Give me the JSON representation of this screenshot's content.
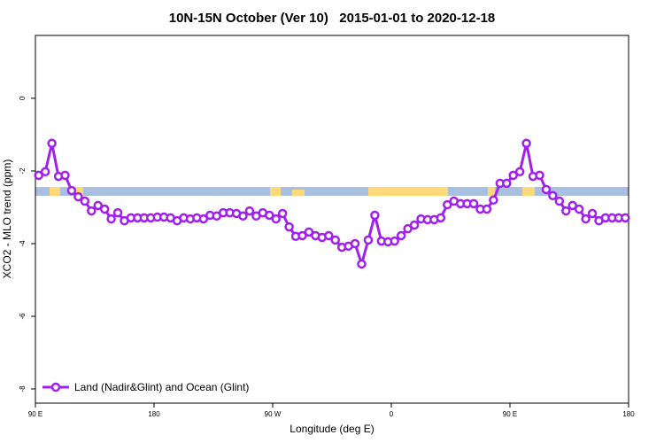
{
  "chart_data": {
    "type": "line",
    "title": "10N-15N October (Ver 10)   2015-01-01 to 2020-12-18",
    "x_label": "Longitude (deg E)",
    "y_label": "XCO2 - MLO trend (ppm)",
    "xlim": [
      90,
      540
    ],
    "ylim": [
      -8.39,
      1.73
    ],
    "xticks": [
      {
        "value": 90,
        "label": "90 E"
      },
      180,
      {
        "value": 270,
        "label": "90 W"
      },
      {
        "value": 360,
        "label": "0"
      },
      {
        "value": 450,
        "label": "90 E"
      },
      {
        "value": 540,
        "label": "180"
      }
    ],
    "yticks": [
      0,
      -2,
      -4,
      -6,
      -8
    ],
    "legend": "bottomleft",
    "x": [
      92.5,
      97.5,
      102.5,
      107.5,
      112.5,
      117.5,
      122.5,
      127.5,
      132.5,
      137.5,
      142.5,
      147.5,
      152.5,
      157.5,
      162.5,
      167.5,
      172.5,
      177.5,
      182.5,
      187.5,
      192.5,
      197.5,
      202.5,
      207.5,
      212.5,
      217.5,
      222.5,
      227.5,
      232.5,
      237.5,
      242.5,
      247.5,
      252.5,
      257.5,
      262.5,
      267.5,
      272.5,
      277.5,
      282.5,
      287.5,
      292.5,
      297.5,
      302.5,
      307.5,
      312.5,
      317.5,
      322.5,
      327.5,
      332.5,
      337.5,
      342.5,
      347.5,
      352.5,
      357.5,
      362.5,
      367.5,
      372.5,
      377.5,
      382.5,
      387.5,
      392.5,
      397.5,
      402.5,
      407.5,
      412.5,
      417.5,
      422.5,
      427.5,
      432.5,
      437.5,
      442.5,
      447.5,
      452.5,
      457.5,
      462.5,
      467.5,
      472.5,
      477.5,
      482.5,
      487.5,
      492.5,
      497.5,
      502.5,
      507.5,
      512.5,
      517.5,
      522.5,
      527.5,
      532.5,
      537.5
    ],
    "series": [
      {
        "name": "Land (Nadir&Glint) and Ocean (Glint)",
        "color": "#a020f0",
        "values": [
          -2.12,
          -2.02,
          -1.24,
          -2.15,
          -2.12,
          -2.54,
          -2.71,
          -2.83,
          -3.1,
          -2.95,
          -3.05,
          -3.32,
          -3.15,
          -3.37,
          -3.29,
          -3.29,
          -3.29,
          -3.29,
          -3.27,
          -3.27,
          -3.29,
          -3.37,
          -3.29,
          -3.32,
          -3.29,
          -3.32,
          -3.22,
          -3.24,
          -3.15,
          -3.15,
          -3.17,
          -3.24,
          -3.1,
          -3.24,
          -3.15,
          -3.22,
          -3.32,
          -3.17,
          -3.54,
          -3.8,
          -3.78,
          -3.68,
          -3.78,
          -3.83,
          -3.78,
          -3.9,
          -4.1,
          -4.07,
          -4.0,
          -4.56,
          -3.9,
          -3.22,
          -3.93,
          -3.95,
          -3.93,
          -3.78,
          -3.59,
          -3.49,
          -3.32,
          -3.34,
          -3.34,
          -3.29,
          -2.93,
          -2.83,
          -2.9,
          -2.9,
          -2.9,
          -3.05,
          -3.05,
          -2.8,
          -2.34,
          -2.34,
          -2.12,
          -2.02,
          -1.24,
          -2.15,
          -2.12,
          -2.51,
          -2.68,
          -2.83,
          -3.1,
          -2.95,
          -3.05,
          -3.32,
          -3.17,
          -3.37,
          -3.29,
          -3.29,
          -3.29,
          -3.29
        ]
      }
    ]
  }
}
